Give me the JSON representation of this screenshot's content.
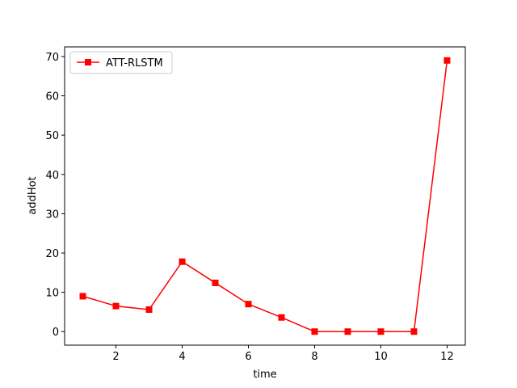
{
  "chart_data": {
    "type": "line",
    "title": "",
    "xlabel": "time",
    "ylabel": "addHot",
    "xlim": [
      0.45,
      12.55
    ],
    "ylim": [
      -3.45,
      72.45
    ],
    "x_ticks": [
      2,
      4,
      6,
      8,
      10,
      12
    ],
    "y_ticks": [
      0,
      10,
      20,
      30,
      40,
      50,
      60,
      70
    ],
    "grid": false,
    "legend_position": "top-left",
    "series": [
      {
        "name": "ATT-RLSTM",
        "color": "#ff0000",
        "marker": "square",
        "x": [
          1,
          2,
          3,
          4,
          5,
          6,
          7,
          8,
          9,
          10,
          11,
          12
        ],
        "y": [
          9,
          6.5,
          5.6,
          17.8,
          12.4,
          7.0,
          3.6,
          0,
          0,
          0,
          0,
          69
        ]
      }
    ]
  }
}
